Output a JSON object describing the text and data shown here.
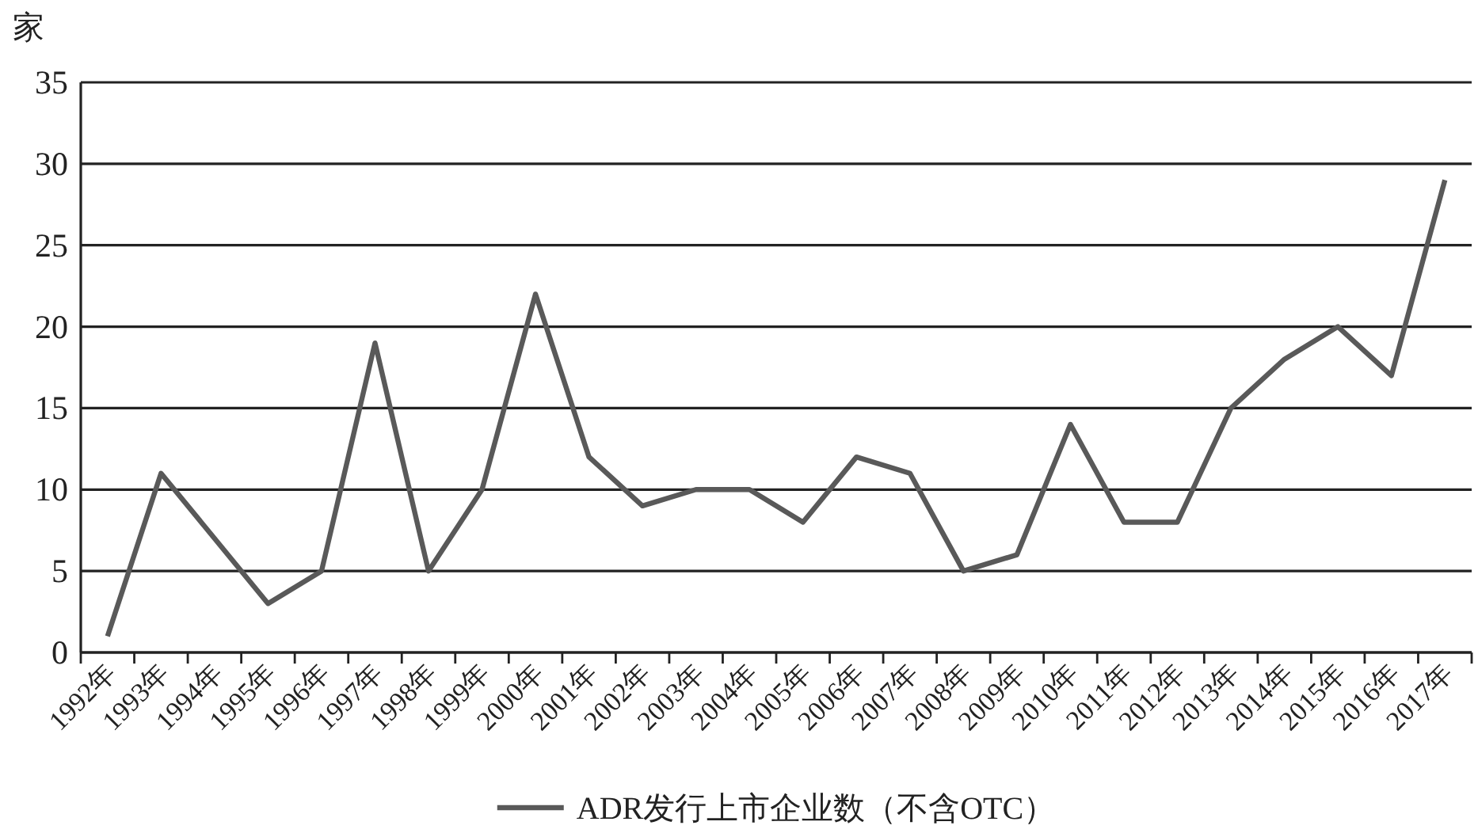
{
  "chart_data": {
    "type": "line",
    "ylabel": "家",
    "categories": [
      "1992年",
      "1993年",
      "1994年",
      "1995年",
      "1996年",
      "1997年",
      "1998年",
      "1999年",
      "2000年",
      "2001年",
      "2002年",
      "2003年",
      "2004年",
      "2005年",
      "2006年",
      "2007年",
      "2008年",
      "2009年",
      "2010年",
      "2011年",
      "2012年",
      "2013年",
      "2014年",
      "2015年",
      "2016年",
      "2017年"
    ],
    "series": [
      {
        "name": "ADR发行上市企业数（不含OTC）",
        "color": "#595959",
        "values": [
          1,
          11,
          7,
          3,
          5,
          19,
          5,
          10,
          22,
          12,
          9,
          10,
          10,
          8,
          12,
          11,
          5,
          6,
          14,
          8,
          8,
          15,
          18,
          20,
          17,
          29
        ]
      }
    ],
    "ylim": [
      0,
      35
    ],
    "yticks": [
      0,
      5,
      10,
      15,
      20,
      25,
      30,
      35
    ],
    "grid": "y",
    "legend": "bottom",
    "marker": "none",
    "line_style": "solid"
  }
}
